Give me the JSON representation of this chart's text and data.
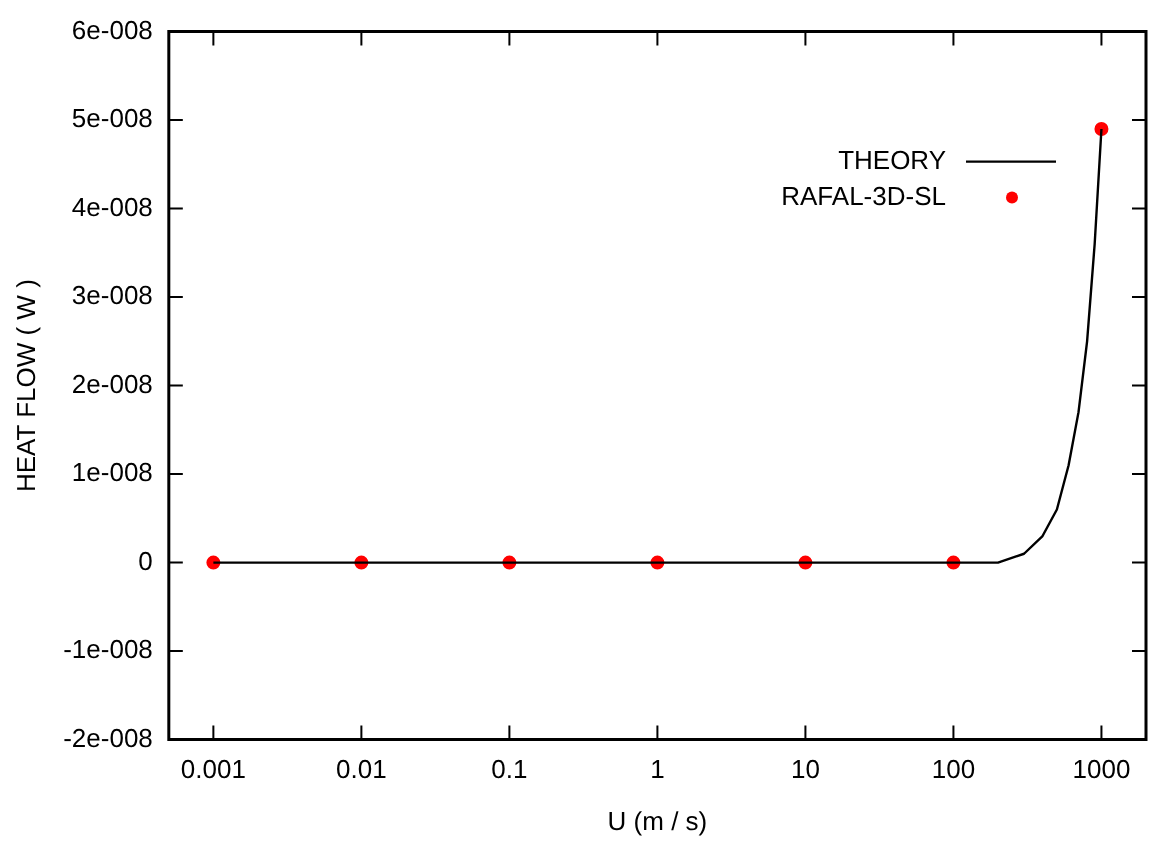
{
  "chart_data": {
    "type": "line",
    "xlabel": "U (m / s)",
    "ylabel": "HEAT FLOW ( W )",
    "log": "x",
    "grid": false,
    "legend": "top right",
    "xlim": [
      0.0005,
      2000
    ],
    "xticks": [
      0.001,
      0.01,
      0.1,
      1,
      10,
      100,
      1000
    ],
    "ylim": [
      -2e-08,
      6e-08
    ],
    "yticks": [
      {
        "value": -2e-08,
        "label": "-2e-008"
      },
      {
        "value": -1e-08,
        "label": "-1e-008"
      },
      {
        "value": 0,
        "label": "0"
      },
      {
        "value": 1e-08,
        "label": "1e-008"
      },
      {
        "value": 2e-08,
        "label": "2e-008"
      },
      {
        "value": 3e-08,
        "label": "3e-008"
      },
      {
        "value": 4e-08,
        "label": "4e-008"
      },
      {
        "value": 5e-08,
        "label": "5e-008"
      },
      {
        "value": 6e-08,
        "label": "6e-008"
      }
    ],
    "series": [
      {
        "name": "THEORY",
        "color": "#000000",
        "line_style": "solid",
        "marker": "none",
        "x": [
          0.001,
          0.01,
          0.1,
          1,
          10,
          100,
          200,
          300,
          400,
          500,
          600,
          700,
          800,
          900,
          1000
        ],
        "values": [
          0,
          0,
          0,
          0,
          0,
          0,
          0,
          1e-09,
          3e-09,
          6e-09,
          1.1e-08,
          1.7e-08,
          2.5e-08,
          3.6e-08,
          4.9e-08
        ]
      },
      {
        "name": "RAFAL-3D-SL",
        "type": "scatter",
        "color": "#ff0000",
        "marker": "circle",
        "x": [
          0.001,
          0.01,
          0.1,
          1,
          10,
          100,
          1000
        ],
        "values": [
          0,
          0,
          0,
          0,
          0,
          0,
          4.9e-08
        ]
      }
    ]
  }
}
